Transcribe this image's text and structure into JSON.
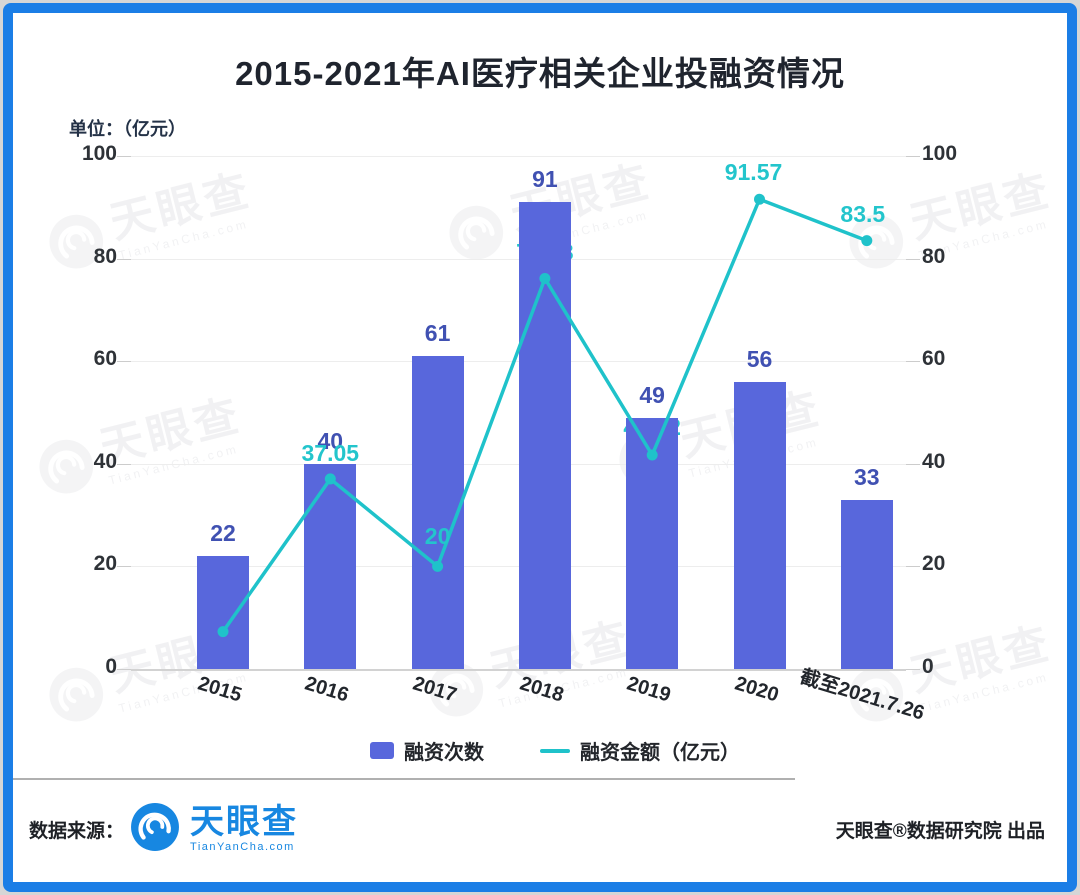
{
  "chart_data": {
    "type": "bar+line",
    "title": "2015-2021年AI医疗相关企业投融资情况",
    "unit_label": "单位：（亿元）",
    "categories": [
      "2015",
      "2016",
      "2017",
      "2018",
      "2019",
      "2020",
      "截至2021.7.26"
    ],
    "series": [
      {
        "name": "融资次数",
        "type": "bar",
        "color": "#5867dc",
        "values": [
          22,
          40,
          61,
          91,
          49,
          56,
          33
        ]
      },
      {
        "name": "融资金额（亿元）",
        "type": "line",
        "color": "#1fc2ca",
        "values": [
          7.28,
          37.05,
          20,
          76.13,
          41.72,
          91.57,
          83.5
        ]
      }
    ],
    "ylim": [
      0,
      100
    ],
    "yticks": [
      0,
      20,
      40,
      60,
      80,
      100
    ],
    "dual_y_axis": true,
    "grid": true,
    "legend_position": "bottom",
    "x_label_rotation_deg": 17
  },
  "watermark": {
    "text": "天眼查",
    "sub": "TianYanCha.com"
  },
  "footer": {
    "source_label": "数据来源：",
    "brand": "天眼查",
    "brand_sub": "TianYanCha.com",
    "credit": "天眼查®数据研究院 出品"
  },
  "colors": {
    "frame_border": "#1b7ee6",
    "bar": "#5867dc",
    "bar_label": "#4051b2",
    "line": "#1fc2ca",
    "brand_blue": "#1787e1"
  }
}
